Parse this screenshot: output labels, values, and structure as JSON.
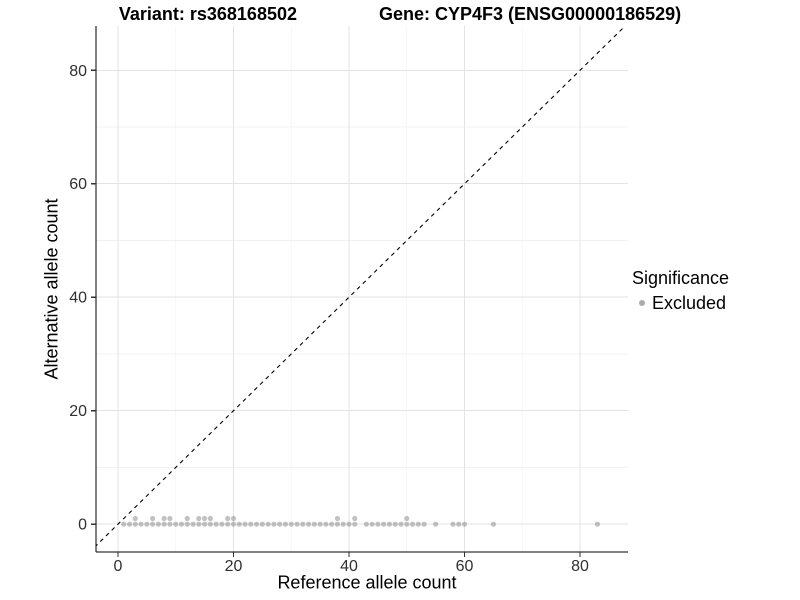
{
  "chart_data": {
    "type": "scatter",
    "title_left": "Variant: rs368168502",
    "title_right": "Gene: CYP4F3 (ENSG00000186529)",
    "xlabel": "Reference allele count",
    "ylabel": "Alternative allele count",
    "xlim": [
      -3.8,
      88.3
    ],
    "ylim": [
      -4.9,
      87.8
    ],
    "x_ticks": [
      0,
      20,
      40,
      60,
      80
    ],
    "y_ticks": [
      0,
      20,
      40,
      60,
      80
    ],
    "x_minor_ticks": [
      10,
      30,
      50,
      70
    ],
    "y_minor_ticks": [
      10,
      30,
      50,
      70
    ],
    "grid": "major-and-minor",
    "panel_background": "#ffffff",
    "major_grid_color": "#e3e3e3",
    "minor_grid_color": "#f0f0f0",
    "axis_line_color": "#000000",
    "identity_line": {
      "style": "dashed",
      "color": "#000000",
      "equation": "y = x"
    },
    "legend": {
      "title": "Significance",
      "position": "right",
      "items": [
        {
          "label": "Excluded",
          "color": "#ababab"
        }
      ]
    },
    "series": [
      {
        "name": "Excluded",
        "color": "#777777",
        "opacity": 0.45,
        "marker_radius": 2.6,
        "groups": [
          {
            "y": 0,
            "x": [
              1,
              2,
              3,
              4,
              5,
              6,
              7,
              8,
              9,
              10,
              11,
              12,
              13,
              14,
              15,
              16,
              17,
              18,
              19,
              20,
              21,
              22,
              23,
              24,
              25,
              26,
              27,
              28,
              29,
              30,
              31,
              32,
              33,
              34,
              35,
              36,
              37,
              38,
              39,
              40,
              41,
              43,
              44,
              45,
              46,
              47,
              48,
              49,
              50,
              51,
              52,
              53,
              55,
              58,
              59,
              60,
              65,
              83
            ]
          },
          {
            "y": 1,
            "x": [
              3,
              6,
              8,
              9,
              12,
              14,
              15,
              16,
              19,
              20,
              38,
              41,
              50
            ]
          }
        ]
      }
    ]
  }
}
